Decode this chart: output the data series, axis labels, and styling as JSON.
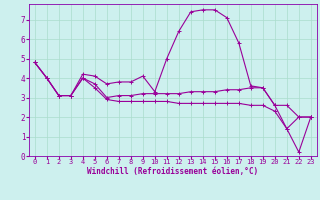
{
  "xlabel": "Windchill (Refroidissement éolien,°C)",
  "background_color": "#cdf0ee",
  "grid_color": "#aaddcc",
  "line_color": "#990099",
  "spine_color": "#8800aa",
  "xlim": [
    -0.5,
    23.5
  ],
  "ylim": [
    0,
    7.8
  ],
  "xticks": [
    0,
    1,
    2,
    3,
    4,
    5,
    6,
    7,
    8,
    9,
    10,
    11,
    12,
    13,
    14,
    15,
    16,
    17,
    18,
    19,
    20,
    21,
    22,
    23
  ],
  "yticks": [
    0,
    1,
    2,
    3,
    4,
    5,
    6,
    7
  ],
  "lines": [
    [
      4.8,
      4.0,
      3.1,
      3.1,
      4.2,
      4.1,
      3.7,
      3.8,
      3.8,
      4.1,
      3.3,
      5.0,
      6.4,
      7.4,
      7.5,
      7.5,
      7.1,
      5.8,
      3.6,
      3.5,
      2.6,
      1.4,
      2.0,
      2.0
    ],
    [
      4.8,
      4.0,
      3.1,
      3.1,
      4.0,
      3.7,
      3.0,
      3.1,
      3.1,
      3.2,
      3.2,
      3.2,
      3.2,
      3.3,
      3.3,
      3.3,
      3.4,
      3.4,
      3.5,
      3.5,
      2.6,
      2.6,
      2.0,
      2.0
    ],
    [
      4.8,
      4.0,
      3.1,
      3.1,
      4.0,
      3.5,
      2.9,
      2.8,
      2.8,
      2.8,
      2.8,
      2.8,
      2.7,
      2.7,
      2.7,
      2.7,
      2.7,
      2.7,
      2.6,
      2.6,
      2.3,
      1.4,
      0.2,
      2.0
    ]
  ],
  "tick_fontsize": 5,
  "xlabel_fontsize": 5.5,
  "marker_size": 2.5,
  "linewidth": 0.8
}
